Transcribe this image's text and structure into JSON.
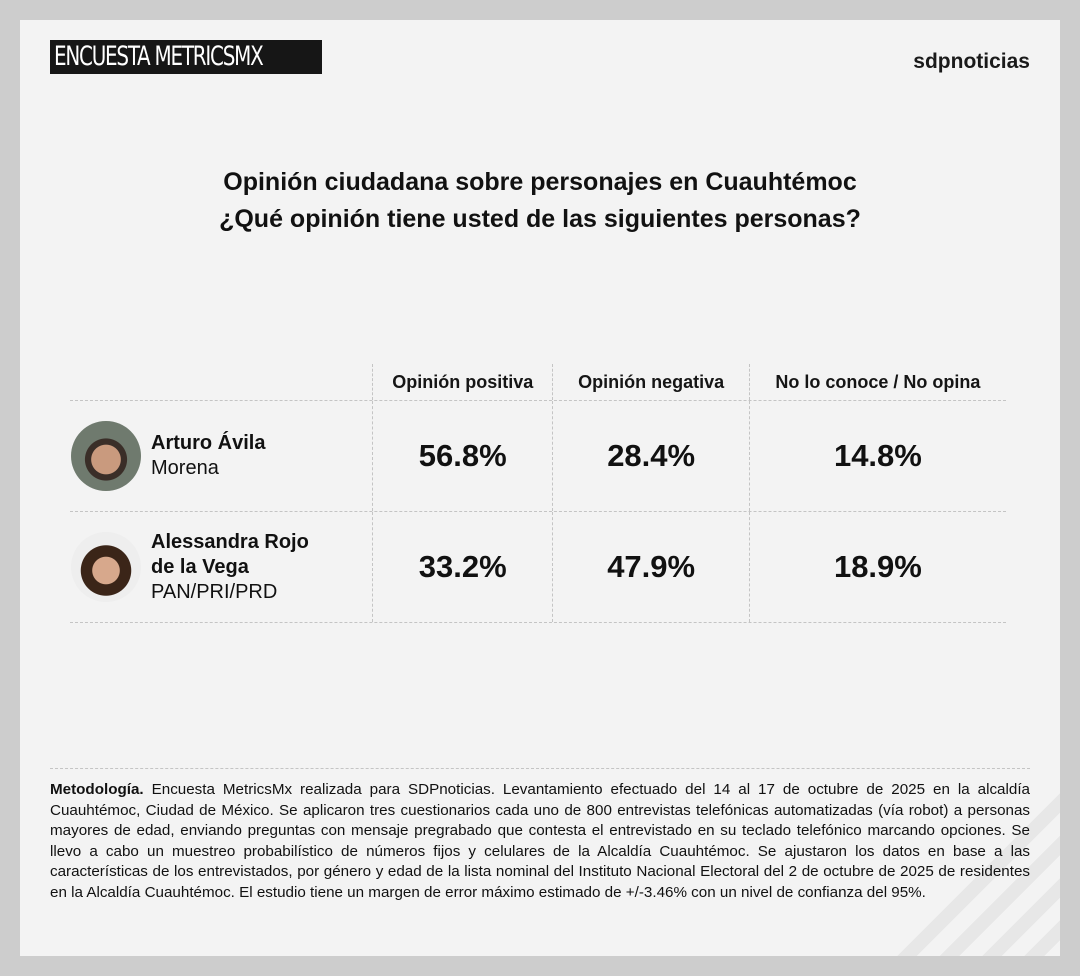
{
  "header": {
    "brand": "ENCUESTA METRICSMX",
    "logo": "sdpnoticias"
  },
  "title": {
    "line1": "Opinión ciudadana sobre personajes en Cuauhtémoc",
    "line2": "¿Qué opinión tiene usted de las siguientes personas?"
  },
  "chart_data": {
    "type": "table",
    "title": "Opinión ciudadana sobre personajes en Cuauhtémoc",
    "columns": [
      "Opinión positiva",
      "Opinión negativa",
      "No lo conoce / No opina"
    ],
    "rows": [
      {
        "name": "Arturo Ávila",
        "name_line1": "Arturo Ávila",
        "name_line2": "",
        "party": "Morena",
        "values": [
          "56.8%",
          "28.4%",
          "14.8%"
        ]
      },
      {
        "name": "Alessandra Rojo de la Vega",
        "name_line1": "Alessandra Rojo",
        "name_line2": "de la Vega",
        "party": "PAN/PRI/PRD",
        "values": [
          "33.2%",
          "47.9%",
          "18.9%"
        ]
      }
    ]
  },
  "methodology": {
    "label": "Metodología.",
    "text": " Encuesta MetricsMx realizada para SDPnoticias. Levantamiento efectuado del 14 al 17 de octubre de 2025 en la alcaldía Cuauhtémoc, Ciudad de México. Se aplicaron tres cuestionarios cada uno de 800 entrevistas telefónicas automatizadas (vía robot) a personas mayores de edad, enviando preguntas con mensaje pregrabado que contesta el entrevistado en su teclado telefónico marcando opciones. Se llevo a cabo un muestreo probabilístico de números fijos y celulares de la Alcaldía Cuauhtémoc. Se ajustaron los datos en base a las características de los entrevistados, por género y edad de la lista nominal del Instituto Nacional Electoral del 2 de octubre de 2025 de residentes en la Alcaldía Cuauhtémoc. El estudio tiene un margen de error máximo estimado de +/-3.46% con un nivel de confianza del 95%."
  }
}
